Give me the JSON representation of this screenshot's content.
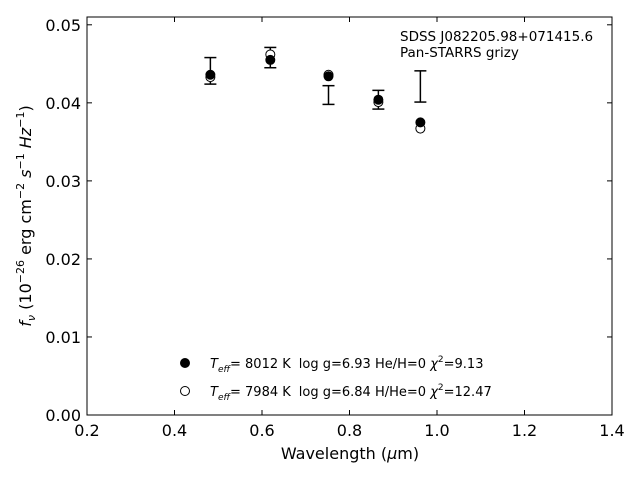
{
  "chart_data": {
    "type": "scatter",
    "xlabel_prefix": "Wavelength (",
    "xlabel_mu": "μ",
    "xlabel_suffix": "m)",
    "ylabel": {
      "f": "f",
      "nu": "ν",
      "open": " (10",
      "exp1": "−26",
      "mid": " erg cm",
      "exp2": "−2",
      "s": " s",
      "exp3": "−1",
      "hz": " Hz",
      "exp4": "−1",
      "close": ")"
    },
    "xlim": [
      0.2,
      1.4
    ],
    "ylim": [
      0.0,
      0.051
    ],
    "xticks": [
      0.2,
      0.4,
      0.6,
      0.8,
      1.0,
      1.2,
      1.4
    ],
    "xtick_labels": [
      "0.2",
      "0.4",
      "0.6",
      "0.8",
      "1.0",
      "1.2",
      "1.4"
    ],
    "yticks": [
      0.0,
      0.01,
      0.02,
      0.03,
      0.04,
      0.05
    ],
    "ytick_labels": [
      "0.00",
      "0.01",
      "0.02",
      "0.03",
      "0.04",
      "0.05"
    ],
    "annotation": [
      "SDSS J082205.98+071415.6",
      "Pan-STARRS grizy"
    ],
    "observed": {
      "x": [
        0.482,
        0.619,
        0.752,
        0.866,
        0.962
      ],
      "y": [
        0.0441,
        0.0458,
        0.041,
        0.0404,
        0.0421
      ],
      "yerr": [
        0.0017,
        0.0013,
        0.0012,
        0.0012,
        0.002
      ]
    },
    "series": [
      {
        "marker": "filled-circle",
        "x": [
          0.482,
          0.619,
          0.752,
          0.866,
          0.962
        ],
        "y": [
          0.0436,
          0.0455,
          0.0434,
          0.0404,
          0.0375
        ],
        "legend": {
          "T": "T",
          "eff": "eff",
          "tval": "= 8012 K",
          "rest": "log g=6.93  He/H=0  ",
          "chi": "χ",
          "chi_sup": "2",
          "chi_val": "=9.13"
        }
      },
      {
        "marker": "open-circle",
        "x": [
          0.482,
          0.619,
          0.752,
          0.866,
          0.962
        ],
        "y": [
          0.0433,
          0.0462,
          0.0436,
          0.0401,
          0.0367
        ],
        "legend": {
          "T": "T",
          "eff": "eff",
          "tval": "= 7984 K",
          "rest": "log g=6.84  H/He=0  ",
          "chi": "χ",
          "chi_sup": "2",
          "chi_val": "=12.47"
        }
      }
    ],
    "colors": {
      "marker": "#000000",
      "open_fill": "#ffffff"
    }
  }
}
